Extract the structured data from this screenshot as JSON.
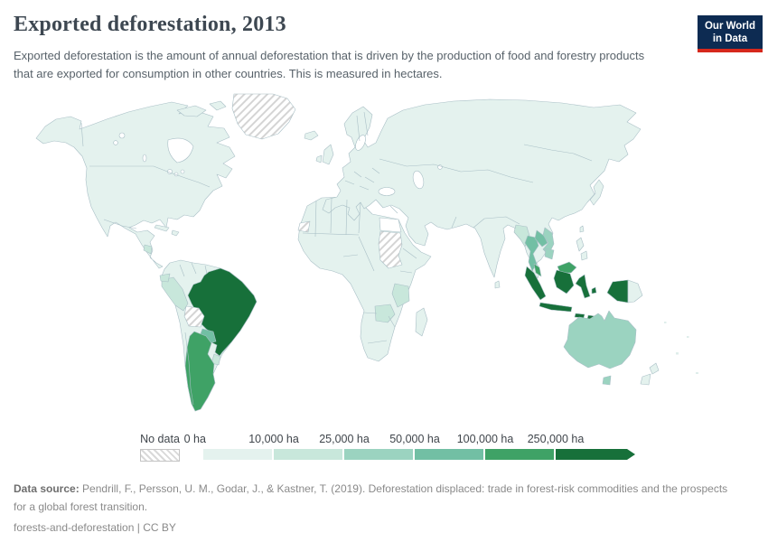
{
  "header": {
    "title": "Exported deforestation, 2013",
    "subtitle": "Exported deforestation is the amount of annual deforestation that is driven by the production of food and forestry products that are exported for consumption in other countries. This is measured in hectares.",
    "logo": {
      "line1": "Our World",
      "line2": "in Data",
      "bg": "#0d2b52",
      "accent": "#d6281c"
    }
  },
  "legend": {
    "no_data_label": "No data",
    "bins": [
      {
        "label": "0 ha",
        "color": "#e4f2ee"
      },
      {
        "label": "10,000 ha",
        "color": "#c8e7db"
      },
      {
        "label": "25,000 ha",
        "color": "#9bd3c0"
      },
      {
        "label": "50,000 ha",
        "color": "#72bfa4"
      },
      {
        "label": "100,000 ha",
        "color": "#3fa266"
      },
      {
        "label": "250,000 ha",
        "color": "#17703a"
      }
    ]
  },
  "footer": {
    "source_label": "Data source:",
    "source_text": "Pendrill, F., Persson, U. M., Godar, J., & Kastner, T. (2019). Deforestation displaced: trade in forest-risk commodities and the prospects for a global forest transition.",
    "license": "forests-and-deforestation | CC BY"
  },
  "chart_data": {
    "type": "choropleth",
    "title": "Exported deforestation, 2013",
    "unit": "hectares",
    "year": 2013,
    "bin_edges_ha": [
      0,
      10000,
      25000,
      50000,
      100000,
      250000
    ],
    "bin_labels": [
      "0 ha",
      "10,000 ha",
      "25,000 ha",
      "50,000 ha",
      "100,000 ha",
      "250,000 ha"
    ],
    "no_data_label": "No data",
    "legend_position": "bottom",
    "countries_by_bin": {
      "250,000 ha and above": [
        "Brazil",
        "Indonesia"
      ],
      "100,000-250,000 ha": [
        "Argentina",
        "Malaysia"
      ],
      "50,000-100,000 ha": [
        "Paraguay",
        "Thailand",
        "Laos"
      ],
      "25,000-50,000 ha": [
        "Australia",
        "Vietnam",
        "Cambodia"
      ],
      "10,000-25,000 ha": [
        "Peru",
        "Uruguay",
        "Ecuador",
        "Nicaragua",
        "Tanzania",
        "Zambia",
        "Myanmar"
      ],
      "0-10,000 ha": [
        "Most other countries"
      ],
      "No data": [
        "Greenland",
        "Bolivia",
        "Sudan",
        "Western Sahara"
      ]
    }
  },
  "map": {
    "ocean": "#ffffff",
    "border": "#a9bfc6",
    "country_bins": {
      "north-america": 0,
      "south-america": 0,
      "africa": 0,
      "eurasia": 0,
      "arctic-islands-1": 0,
      "arctic-islands-2": 0,
      "iceland": 0,
      "cuba": 0,
      "hispaniola": 0,
      "uk": 0,
      "ireland": 0,
      "japan": 0,
      "sri-lanka": 0,
      "taiwan": 0,
      "philippines-1": 0,
      "philippines-2": 0,
      "madagascar": 0,
      "png": 0,
      "new-zealand-north": 0,
      "new-zealand-south": 0,
      "greenland": "no_data",
      "bolivia": "no_data",
      "sudan": "no_data",
      "western-sahara": "no_data",
      "egypt": "none",
      "peru": 1,
      "ecuador": 1,
      "uruguay": 1,
      "nicaragua": 1,
      "tanzania": 1,
      "zambia": 1,
      "myanmar": 1,
      "vietnam": 2,
      "cambodia": 2,
      "australia": 2,
      "tasmania": 2,
      "thailand": 3,
      "laos": 3,
      "paraguay": 3,
      "argentina": 4,
      "malaysia-peninsula": 4,
      "malaysia-borneo": 4,
      "brazil": 5,
      "indonesia-sumatra": 5,
      "indonesia-java": 5,
      "indonesia-kalimantan": 5,
      "indonesia-sulawesi": 5,
      "indonesia-lesser-sunda-1": 5,
      "indonesia-lesser-sunda-2": 5,
      "indonesia-maluku": 5,
      "indonesia-papua": 5
    }
  }
}
